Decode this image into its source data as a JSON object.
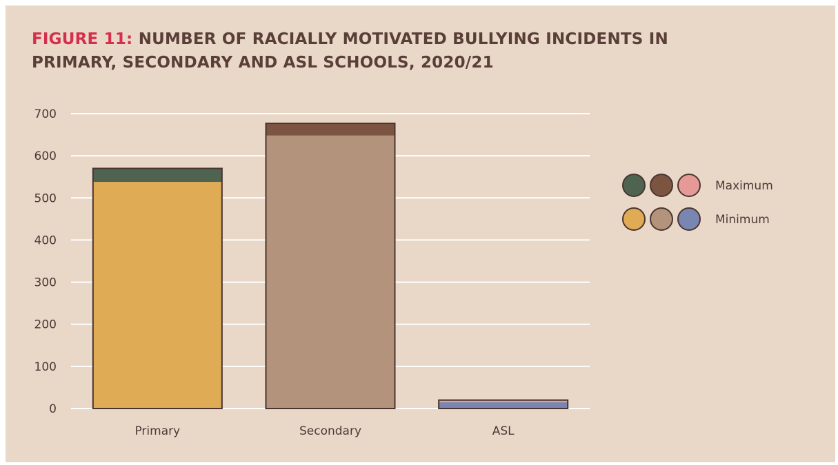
{
  "title_prefix": "FIGURE 11:",
  "title_rest": "NUMBER OF RACIALLY MOTIVATED BULLYING INCIDENTS IN PRIMARY, SECONDARY AND ASL SCHOOLS, 2020/21",
  "chart_data": {
    "type": "bar",
    "stacked": true,
    "categories": [
      "Primary",
      "Secondary",
      "ASL"
    ],
    "series": [
      {
        "name": "Minimum",
        "values": [
          538,
          648,
          15
        ],
        "colors": [
          "#dfab55",
          "#b3937b",
          "#7986b2"
        ]
      },
      {
        "name": "Maximum",
        "values": [
          32,
          29,
          5
        ],
        "colors": [
          "#4e6450",
          "#7b5541",
          "#e59a98"
        ]
      }
    ],
    "totals": [
      570,
      677,
      20
    ],
    "ylim": [
      0,
      700
    ],
    "yticks": [
      0,
      100,
      200,
      300,
      400,
      500,
      600,
      700
    ],
    "grid": true,
    "legend_position": "right",
    "legend": [
      {
        "label": "Maximum",
        "colors": [
          "#4e6450",
          "#7b5541",
          "#e59a98"
        ]
      },
      {
        "label": "Minimum",
        "colors": [
          "#dfab55",
          "#b3937b",
          "#7986b2"
        ]
      }
    ]
  }
}
